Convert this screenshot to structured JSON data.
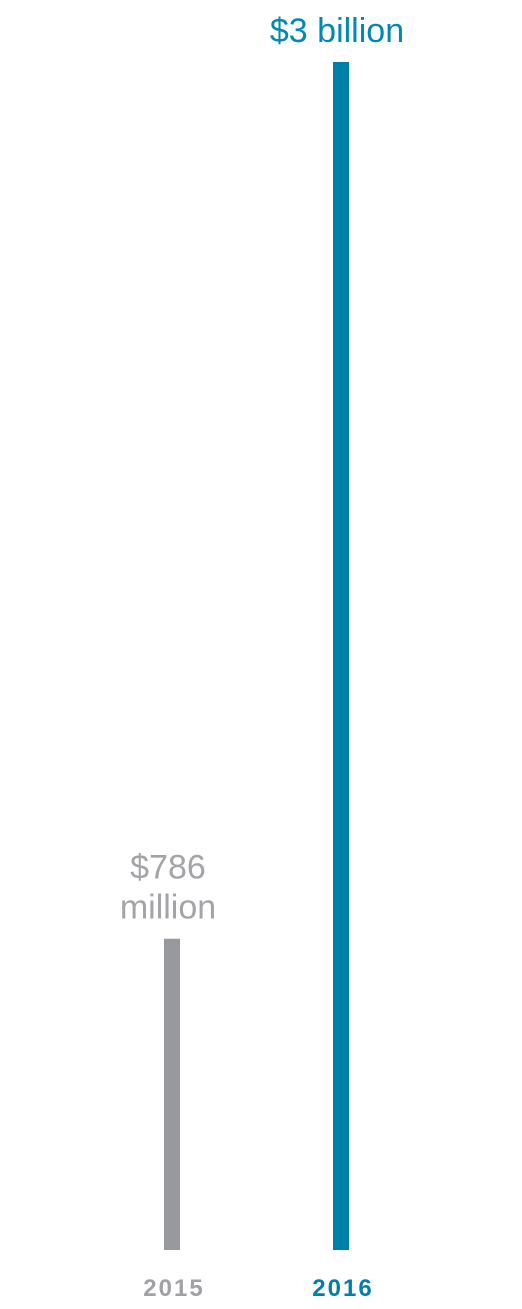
{
  "colors": {
    "background": "#ffffff",
    "bar_2015": "#98999c",
    "bar_2016": "#0080a8",
    "label_2015": "#a3a4a7",
    "label_2016": "#0089b4",
    "year_2015": "#a0a1a4",
    "year_2016": "#0080a8"
  },
  "chart_data": {
    "type": "bar",
    "title": "",
    "xlabel": "",
    "ylabel": "",
    "categories": [
      "2015",
      "2016"
    ],
    "values": [
      786000000,
      3000000000
    ],
    "value_labels": [
      [
        "$786",
        "million"
      ],
      [
        "$3 billion"
      ]
    ],
    "ylim": [
      0,
      3000000000
    ],
    "grid": false,
    "legend": "none"
  }
}
